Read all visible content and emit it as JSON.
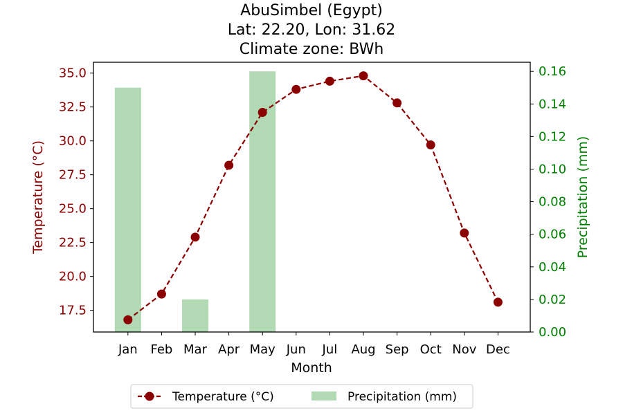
{
  "chart_data": {
    "type": "bar+line",
    "title_lines": [
      "AbuSimbel (Egypt)",
      "Lat: 22.20, Lon: 31.62",
      "Climate zone: BWh"
    ],
    "xlabel": "Month",
    "categories": [
      "Jan",
      "Feb",
      "Mar",
      "Apr",
      "May",
      "Jun",
      "Jul",
      "Aug",
      "Sep",
      "Oct",
      "Nov",
      "Dec"
    ],
    "ylabel_left": "Temperature (°C)",
    "ylabel_right": "Precipitation (mm)",
    "ylim_left": [
      15.9,
      35.8
    ],
    "ylim_right": [
      0.0,
      0.1656
    ],
    "yticks_left": [
      "17.5",
      "20.0",
      "22.5",
      "25.0",
      "27.5",
      "30.0",
      "32.5",
      "35.0"
    ],
    "yticks_right": [
      "0.00",
      "0.02",
      "0.04",
      "0.06",
      "0.08",
      "0.10",
      "0.12",
      "0.14",
      "0.16"
    ],
    "series": [
      {
        "name": "Temperature (°C)",
        "kind": "line",
        "style": "dashed, circle markers",
        "color": "#8b0000",
        "axis": "left",
        "values": [
          16.8,
          18.7,
          22.9,
          28.2,
          32.1,
          33.8,
          34.4,
          34.8,
          32.8,
          29.7,
          23.2,
          18.1
        ]
      },
      {
        "name": "Precipitation (mm)",
        "kind": "bar",
        "color": "#b1d9b3",
        "axis": "right",
        "values": [
          0.15,
          0,
          0.02,
          0,
          0.16,
          0,
          0,
          0,
          0,
          0,
          0,
          0
        ]
      }
    ],
    "left_axis_color": "#8b0000",
    "right_axis_color": "#008000",
    "grid": false,
    "legend_position": "bottom-center"
  }
}
